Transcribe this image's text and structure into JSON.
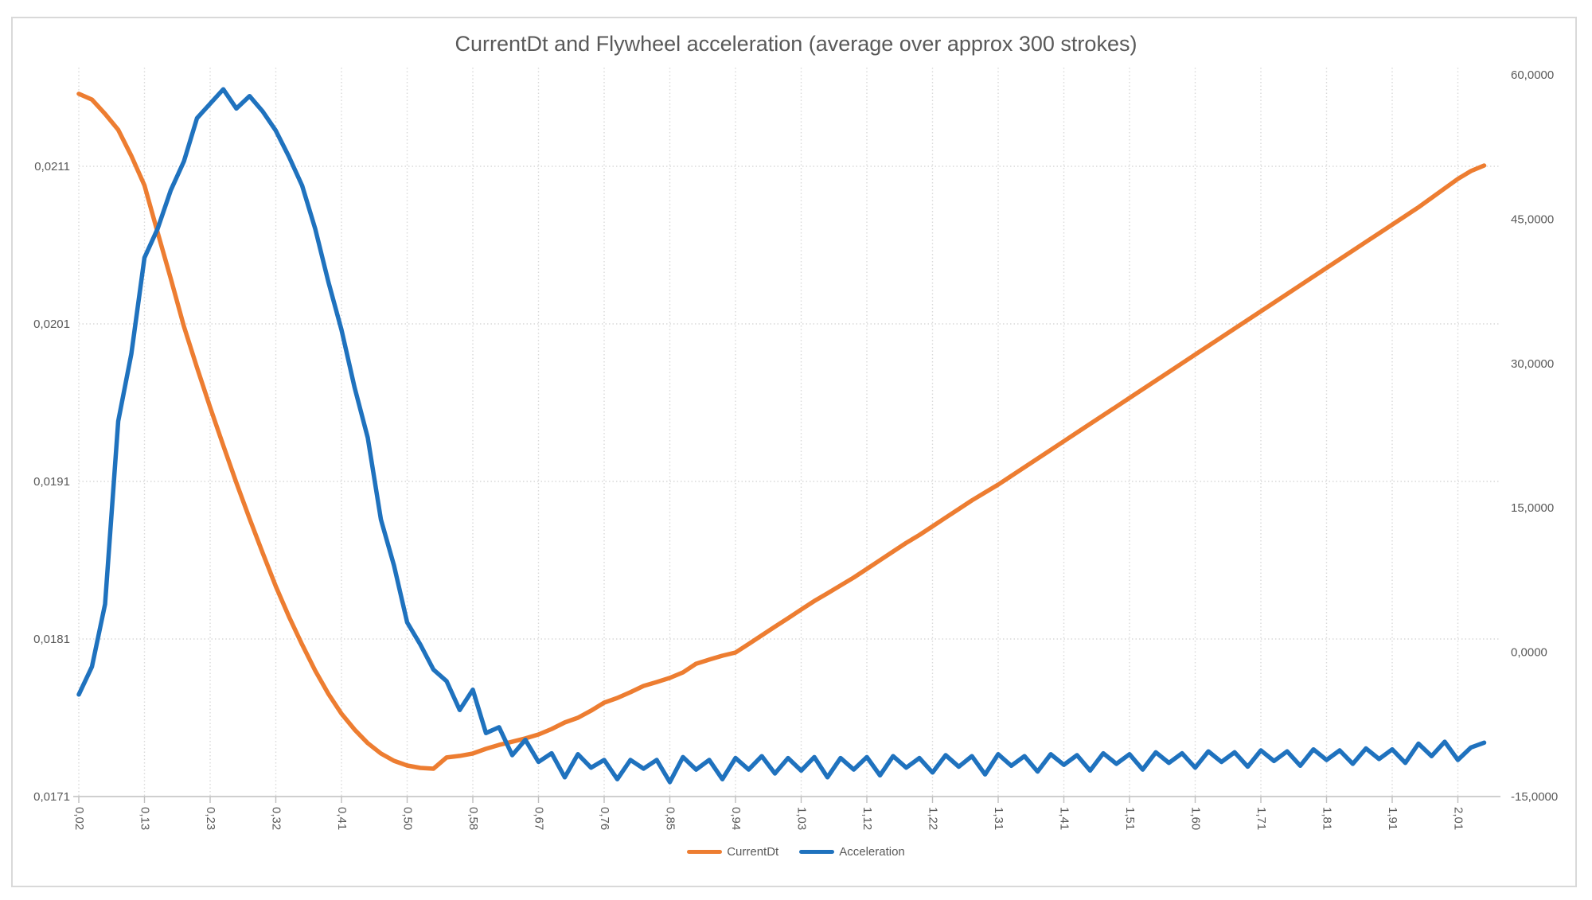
{
  "chart_data": {
    "type": "line",
    "title": "CurrentDt and Flywheel acceleration (average over approx 300 strokes)",
    "number_format": "comma-decimal",
    "grid": "dotted",
    "legend_position": "bottom",
    "x_label_every": 5,
    "x_tick_labels": [
      "0,02",
      "0,13",
      "0,23",
      "0,32",
      "0,41",
      "0,50",
      "0,58",
      "0,67",
      "0,76",
      "0,85",
      "0,94",
      "1,03",
      "1,12",
      "1,22",
      "1,31",
      "1,41",
      "1,51",
      "1,60",
      "1,71",
      "1,81",
      "1,91",
      "2,01"
    ],
    "left_axis": {
      "min": 0.0171,
      "max": 0.0217263,
      "ticks": [
        {
          "label": "0,0211",
          "value": 0.0211
        },
        {
          "label": "0,0201",
          "value": 0.0201
        },
        {
          "label": "0,0191",
          "value": 0.0191
        },
        {
          "label": "0,0181",
          "value": 0.0181
        },
        {
          "label": "0,0171",
          "value": 0.0171
        }
      ]
    },
    "right_axis": {
      "min": -15,
      "max": 60.75,
      "ticks": [
        {
          "label": "60,0000",
          "value": 60
        },
        {
          "label": "45,0000",
          "value": 45
        },
        {
          "label": "30,0000",
          "value": 30
        },
        {
          "label": "15,0000",
          "value": 15
        },
        {
          "label": "0,0000",
          "value": 0
        },
        {
          "label": "-15,0000",
          "value": -15
        }
      ]
    },
    "series": [
      {
        "name": "CurrentDt",
        "axis": "left",
        "color": "#ED7D31",
        "values": [
          0.02156,
          0.021524,
          0.021433,
          0.021332,
          0.021166,
          0.020979,
          0.020681,
          0.020388,
          0.020085,
          0.019823,
          0.01957,
          0.019328,
          0.019091,
          0.018864,
          0.018646,
          0.018434,
          0.018242,
          0.018065,
          0.017899,
          0.017752,
          0.017626,
          0.017525,
          0.017439,
          0.017373,
          0.017327,
          0.017297,
          0.017282,
          0.017277,
          0.017348,
          0.017358,
          0.017373,
          0.017403,
          0.017428,
          0.017448,
          0.017469,
          0.017494,
          0.017529,
          0.01757,
          0.0176,
          0.017645,
          0.017696,
          0.017726,
          0.017762,
          0.017802,
          0.017827,
          0.017853,
          0.017888,
          0.017943,
          0.017969,
          0.017994,
          0.018014,
          0.018068,
          0.018123,
          0.018178,
          0.018232,
          0.018287,
          0.018341,
          0.01839,
          0.01844,
          0.01849,
          0.018545,
          0.0186,
          0.018655,
          0.01871,
          0.01876,
          0.018815,
          0.01887,
          0.018925,
          0.01898,
          0.01903,
          0.01908,
          0.019135,
          0.01919,
          0.019245,
          0.0193,
          0.019355,
          0.01941,
          0.019465,
          0.01952,
          0.019575,
          0.01963,
          0.019685,
          0.01974,
          0.019795,
          0.01985,
          0.019905,
          0.01996,
          0.020015,
          0.02007,
          0.020125,
          0.02018,
          0.020235,
          0.02029,
          0.020345,
          0.0204,
          0.020455,
          0.02051,
          0.020565,
          0.02062,
          0.020675,
          0.02073,
          0.020785,
          0.02084,
          0.0209,
          0.02096,
          0.02102,
          0.02107,
          0.021105
        ]
      },
      {
        "name": "Acceleration",
        "axis": "right",
        "color": "#1F72BE",
        "values": [
          -4.4,
          -1.5,
          5,
          24,
          31,
          41,
          44,
          48,
          51,
          55.5,
          57,
          58.5,
          56.5,
          57.8,
          56.2,
          54.2,
          51.5,
          48.5,
          44,
          38.5,
          33.5,
          27.5,
          22.3,
          13.8,
          9,
          3.1,
          0.8,
          -1.8,
          -3,
          -6,
          -3.9,
          -8.4,
          -7.8,
          -10.7,
          -9.1,
          -11.4,
          -10.5,
          -13,
          -10.6,
          -12,
          -11.2,
          -13.2,
          -11.2,
          -12.1,
          -11.2,
          -13.5,
          -10.9,
          -12.2,
          -11.2,
          -13.2,
          -11,
          -12.2,
          -10.8,
          -12.6,
          -11,
          -12.3,
          -10.9,
          -13,
          -11,
          -12.2,
          -10.9,
          -12.8,
          -10.8,
          -12,
          -11,
          -12.5,
          -10.7,
          -11.9,
          -10.8,
          -12.7,
          -10.6,
          -11.8,
          -10.8,
          -12.4,
          -10.6,
          -11.7,
          -10.7,
          -12.3,
          -10.5,
          -11.6,
          -10.6,
          -12.2,
          -10.4,
          -11.5,
          -10.5,
          -12,
          -10.3,
          -11.4,
          -10.4,
          -11.9,
          -10.2,
          -11.3,
          -10.3,
          -11.8,
          -10.1,
          -11.2,
          -10.2,
          -11.6,
          -10,
          -11.1,
          -10.1,
          -11.5,
          -9.5,
          -10.8,
          -9.3,
          -11.2,
          -9.9,
          -9.4
        ]
      }
    ],
    "colors": {
      "text": "#595959",
      "gridline": "#D9D9D9",
      "axis_line": "#BFBFBF",
      "frame_border": "#D9D9D9",
      "background": "#FFFFFF"
    }
  }
}
